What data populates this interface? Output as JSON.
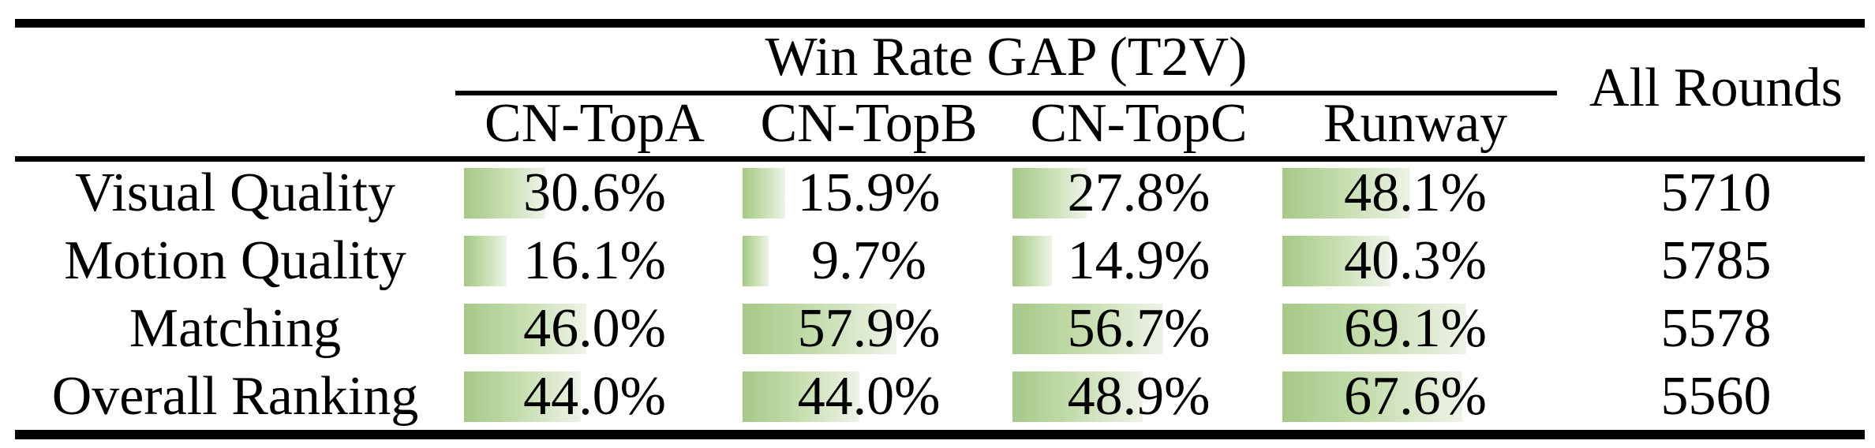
{
  "colors": {
    "background": "#ffffff",
    "text": "#000000",
    "rule": "#000000",
    "bar_gradient_start": "#a6c888",
    "bar_gradient_mid": "#c3dcab",
    "bar_gradient_end": "#eef3e8"
  },
  "table": {
    "title": "Win Rate GAP (T2V)",
    "columns": [
      "CN-TopA",
      "CN-TopB",
      "CN-TopC",
      "Runway"
    ],
    "all_rounds_label": "All Rounds",
    "rows": [
      {
        "label": "Visual Quality",
        "cells": [
          {
            "text": "30.6%",
            "value": 30.6
          },
          {
            "text": "15.9%",
            "value": 15.9
          },
          {
            "text": "27.8%",
            "value": 27.8
          },
          {
            "text": "48.1%",
            "value": 48.1
          }
        ],
        "all_rounds": "5710"
      },
      {
        "label": "Motion Quality",
        "cells": [
          {
            "text": "16.1%",
            "value": 16.1
          },
          {
            "text": "9.7%",
            "value": 9.7
          },
          {
            "text": "14.9%",
            "value": 14.9
          },
          {
            "text": "40.3%",
            "value": 40.3
          }
        ],
        "all_rounds": "5785"
      },
      {
        "label": "Matching",
        "cells": [
          {
            "text": "46.0%",
            "value": 46.0
          },
          {
            "text": "57.9%",
            "value": 57.9
          },
          {
            "text": "56.7%",
            "value": 56.7
          },
          {
            "text": "69.1%",
            "value": 69.1
          }
        ],
        "all_rounds": "5578"
      },
      {
        "label": "Overall Ranking",
        "cells": [
          {
            "text": "44.0%",
            "value": 44.0
          },
          {
            "text": "44.0%",
            "value": 44.0
          },
          {
            "text": "48.9%",
            "value": 48.9
          },
          {
            "text": "67.6%",
            "value": 67.6
          }
        ],
        "all_rounds": "5560"
      }
    ]
  }
}
